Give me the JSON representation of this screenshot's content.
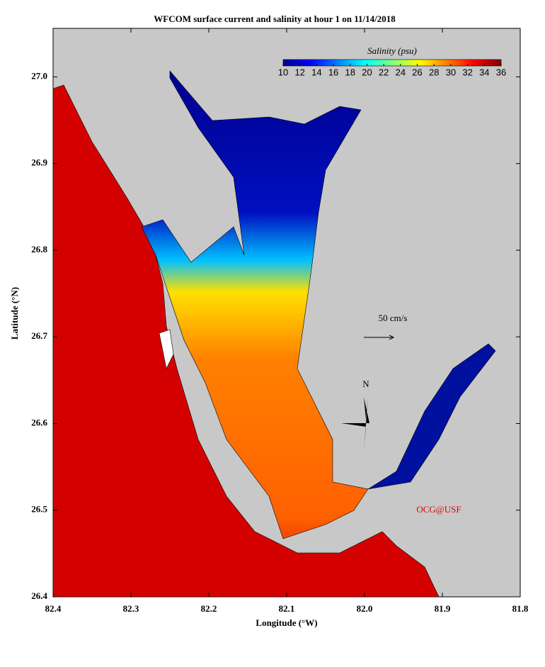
{
  "chart_data": {
    "type": "map",
    "title": "WFCOM surface current and salinity at hour 1 on 11/14/2018",
    "xlabel": "Longitude (°W)",
    "ylabel": "Latitude (°N)",
    "xlim": [
      82.4,
      81.8
    ],
    "ylim": [
      26.4,
      27.056
    ],
    "xticks": [
      82.4,
      82.3,
      82.2,
      82.1,
      {
        "value": 82,
        "label": "82.0"
      },
      81.9,
      81.8
    ],
    "yticks": [
      26.4,
      26.5,
      26.6,
      26.7,
      26.8,
      26.9,
      {
        "value": 27,
        "label": "27.0"
      }
    ],
    "colorbar": {
      "title": "Salinity (psu)",
      "lim": [
        10,
        36
      ],
      "ticks": [
        10,
        12,
        14,
        16,
        18,
        20,
        22,
        24,
        26,
        28,
        30,
        32,
        34,
        36
      ],
      "colors": [
        "#00008f",
        "#0000ff",
        "#0080ff",
        "#00ffff",
        "#80ff80",
        "#ffff00",
        "#ff8000",
        "#ff0000",
        "#800000"
      ]
    },
    "scale_label": "50 cm/s",
    "compass_label": "N",
    "credit": "OCG@USF"
  }
}
